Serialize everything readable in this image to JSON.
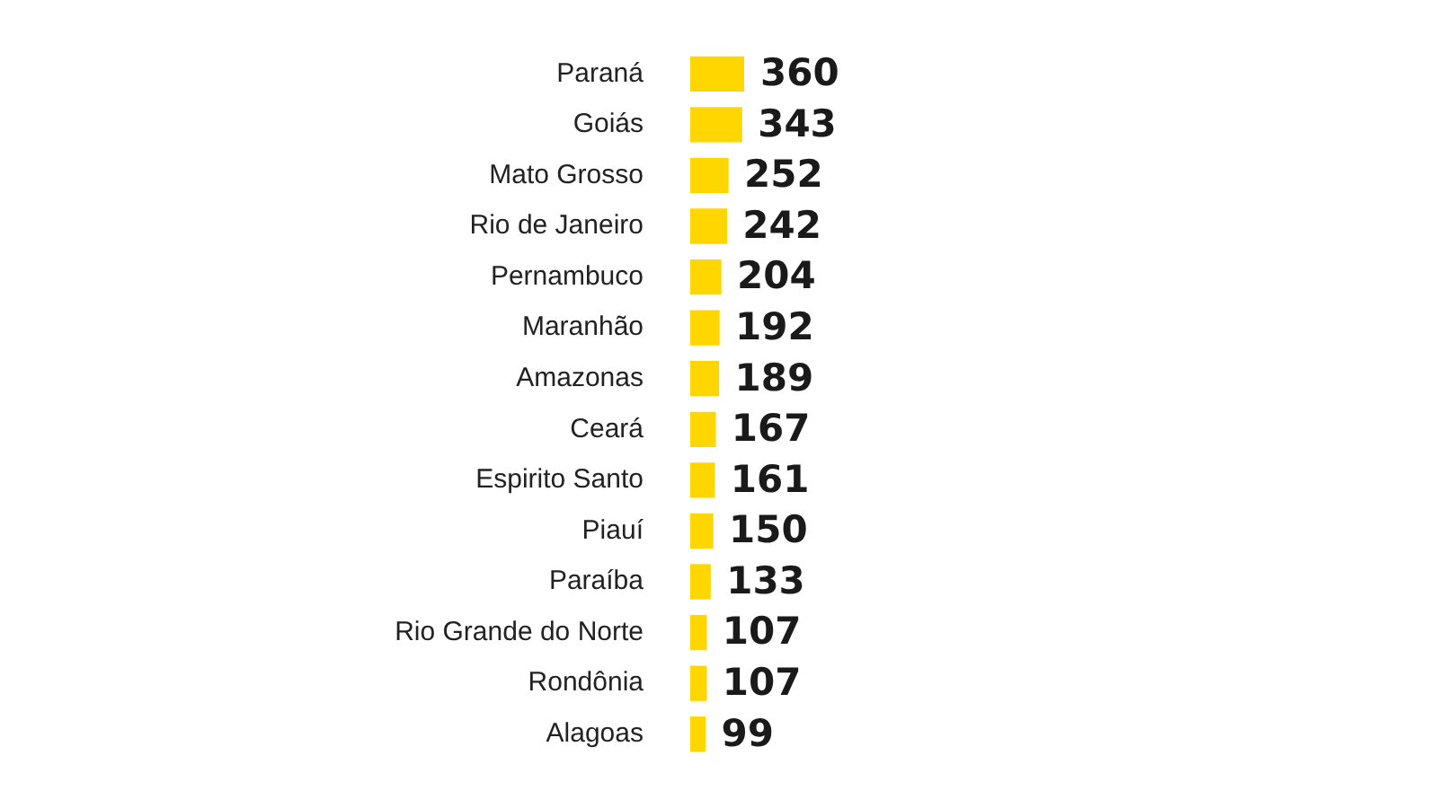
{
  "chart_data": {
    "type": "bar",
    "orientation": "horizontal",
    "categories": [
      "Paraná",
      "Goiás",
      "Mato Grosso",
      "Rio de Janeiro",
      "Pernambuco",
      "Maranhão",
      "Amazonas",
      "Ceará",
      "Espirito Santo",
      "Piauí",
      "Paraíba",
      "Rio Grande do Norte",
      "Rondônia",
      "Alagoas"
    ],
    "values": [
      360,
      343,
      252,
      242,
      204,
      192,
      189,
      167,
      161,
      150,
      133,
      107,
      107,
      99
    ],
    "color": "#ffd600",
    "data_labels": true,
    "legend": false
  }
}
